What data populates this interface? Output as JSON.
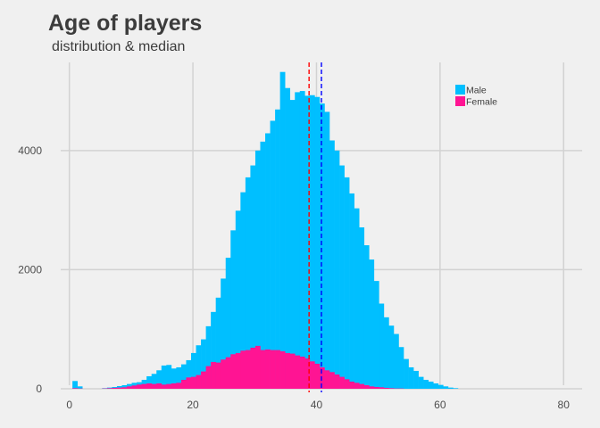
{
  "chart_data": {
    "type": "bar",
    "title": "Age of players",
    "subtitle": "distribution & median",
    "xlabel": "",
    "ylabel": "",
    "xlim": [
      -4,
      83
    ],
    "ylim": [
      -60,
      5600
    ],
    "x_ticks": [
      0,
      20,
      40,
      60,
      80
    ],
    "y_ticks": [
      0,
      2000,
      4000
    ],
    "grid": true,
    "legend_position": "top-right",
    "bin_start": 0.5,
    "bin_width": 0.8,
    "series": [
      {
        "name": "Male",
        "color": "#00BFFF",
        "values": [
          130,
          40,
          0,
          0,
          0,
          0,
          10,
          20,
          30,
          45,
          60,
          80,
          100,
          110,
          150,
          210,
          250,
          310,
          390,
          400,
          340,
          360,
          410,
          480,
          600,
          730,
          830,
          1050,
          1290,
          1530,
          1850,
          2200,
          2660,
          2990,
          3300,
          3550,
          3750,
          4000,
          4150,
          4290,
          4500,
          4690,
          5320,
          5050,
          4850,
          4980,
          5000,
          4920,
          4930,
          4900,
          4790,
          4650,
          4170,
          4000,
          3750,
          3550,
          3280,
          3030,
          2710,
          2410,
          2170,
          1810,
          1430,
          1200,
          1060,
          920,
          700,
          500,
          360,
          300,
          200,
          150,
          120,
          90,
          65,
          40,
          20,
          10,
          0
        ]
      },
      {
        "name": "Female",
        "color": "#FF1493",
        "values": [
          10,
          5,
          0,
          0,
          0,
          0,
          5,
          10,
          15,
          20,
          25,
          40,
          55,
          70,
          80,
          90,
          80,
          90,
          70,
          80,
          90,
          100,
          150,
          190,
          200,
          230,
          290,
          380,
          450,
          440,
          490,
          530,
          580,
          600,
          640,
          650,
          690,
          720,
          650,
          660,
          650,
          650,
          630,
          600,
          590,
          560,
          540,
          510,
          460,
          420,
          360,
          310,
          280,
          240,
          200,
          160,
          120,
          100,
          80,
          60,
          40,
          30,
          25,
          15,
          10,
          5,
          5,
          0,
          0,
          0,
          0,
          0,
          0,
          0,
          0,
          0,
          0,
          0,
          0
        ]
      }
    ],
    "medians": [
      {
        "series": "Female",
        "x": 38.8,
        "color": "#FF0000"
      },
      {
        "series": "Male",
        "x": 40.8,
        "color": "#0000FF"
      }
    ]
  }
}
